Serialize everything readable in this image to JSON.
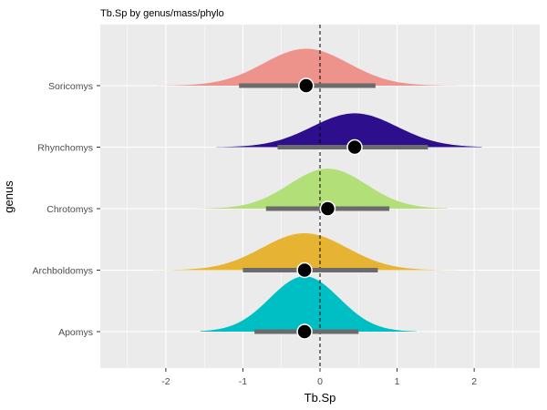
{
  "chart_data": {
    "type": "area",
    "subtype": "ridgeline-halfeye",
    "title": "Tb.Sp by genus/mass/phylo",
    "xlabel": "Tb.Sp",
    "ylabel": "genus",
    "xlim": [
      -2.85,
      2.85
    ],
    "x_ticks": [
      -2,
      -1,
      0,
      1,
      2
    ],
    "reference_line": {
      "x": 0,
      "style": "dashed"
    },
    "grid": true,
    "legend": "none",
    "series": [
      {
        "name": "Apomys",
        "color": "#00BFC4",
        "point": -0.2,
        "interval": [
          -0.85,
          0.5
        ],
        "range": [
          -1.55,
          1.25
        ],
        "sd": 0.45,
        "height": 0.9
      },
      {
        "name": "Archboldomys",
        "color": "#E6B332",
        "point": -0.2,
        "interval": [
          -1.0,
          0.75
        ],
        "range": [
          -2.15,
          1.85
        ],
        "sd": 0.55,
        "height": 0.6
      },
      {
        "name": "Chrotomys",
        "color": "#B2DF78",
        "point": 0.1,
        "interval": [
          -0.7,
          0.9
        ],
        "range": [
          -1.6,
          1.65
        ],
        "sd": 0.5,
        "height": 0.65
      },
      {
        "name": "Rhynchomys",
        "color": "#2D0E8C",
        "point": 0.45,
        "interval": [
          -0.55,
          1.4
        ],
        "range": [
          -1.35,
          2.1
        ],
        "sd": 0.55,
        "height": 0.55
      },
      {
        "name": "Soricomys",
        "color": "#EE938B",
        "point": -0.18,
        "interval": [
          -1.05,
          0.72
        ],
        "range": [
          -2.1,
          1.9
        ],
        "sd": 0.55,
        "height": 0.6
      }
    ]
  }
}
